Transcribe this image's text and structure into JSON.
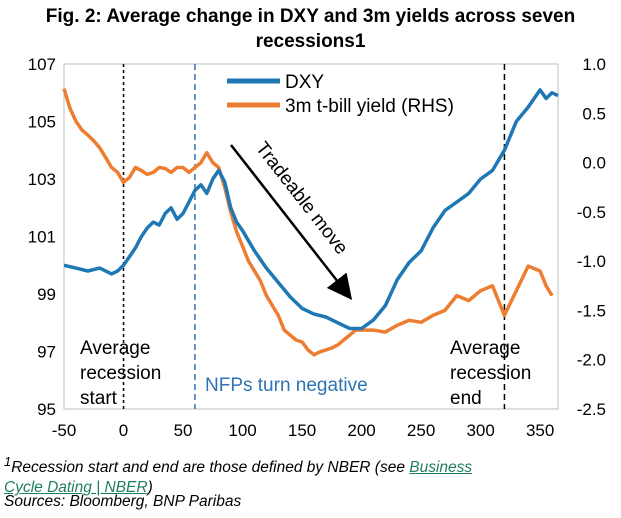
{
  "title": {
    "line1": "Fig. 2: Average change in DXY and 3m yields across seven",
    "line2": "recessions1"
  },
  "chart_data": {
    "type": "line",
    "title": "Fig. 2: Average change in DXY and 3m yields across seven recessions1",
    "xlim": [
      -50,
      365
    ],
    "x_ticks": [
      "-50",
      "0",
      "50",
      "100",
      "150",
      "200",
      "250",
      "300",
      "350"
    ],
    "y_left_lim": [
      95,
      107
    ],
    "y_left_ticks": [
      "95",
      "97",
      "99",
      "101",
      "103",
      "105",
      "107"
    ],
    "y_right_lim": [
      -2.5,
      1.0
    ],
    "y_right_ticks": [
      "-2.5",
      "-2.0",
      "-1.5",
      "-1.0",
      "-0.5",
      "0.0",
      "0.5",
      "1.0"
    ],
    "legend": [
      {
        "label": "DXY",
        "color": "#1f77b4"
      },
      {
        "label": "3m t-bill yield (RHS)",
        "color": "#ed7d31"
      }
    ],
    "legend_position": "top-center",
    "series": [
      {
        "name": "DXY",
        "axis": "left",
        "color": "#1f77b4",
        "x": [
          -50,
          -40,
          -30,
          -20,
          -10,
          -5,
          0,
          5,
          10,
          15,
          20,
          25,
          30,
          35,
          40,
          45,
          50,
          55,
          60,
          65,
          70,
          75,
          80,
          85,
          90,
          95,
          100,
          110,
          120,
          130,
          140,
          150,
          160,
          170,
          180,
          190,
          200,
          210,
          220,
          230,
          240,
          250,
          260,
          270,
          280,
          290,
          300,
          310,
          320,
          330,
          340,
          350,
          355,
          360,
          365
        ],
        "y": [
          100.0,
          99.9,
          99.8,
          99.9,
          99.7,
          99.8,
          100.0,
          100.3,
          100.6,
          101.0,
          101.3,
          101.5,
          101.4,
          101.8,
          102.0,
          101.6,
          101.8,
          102.2,
          102.6,
          102.8,
          102.5,
          103.0,
          103.3,
          102.9,
          102.0,
          101.5,
          101.2,
          100.5,
          99.9,
          99.4,
          98.9,
          98.5,
          98.3,
          98.2,
          98.0,
          97.8,
          97.8,
          98.1,
          98.6,
          99.5,
          100.1,
          100.5,
          101.3,
          101.9,
          102.2,
          102.5,
          103.0,
          103.3,
          104.0,
          105.0,
          105.5,
          106.1,
          105.8,
          106.0,
          105.9
        ]
      },
      {
        "name": "3m t-bill yield (RHS)",
        "axis": "right",
        "color": "#ed7d31",
        "x": [
          -50,
          -45,
          -40,
          -35,
          -30,
          -25,
          -20,
          -15,
          -10,
          -5,
          0,
          5,
          10,
          15,
          20,
          25,
          30,
          35,
          40,
          45,
          50,
          55,
          60,
          65,
          70,
          75,
          80,
          85,
          90,
          95,
          100,
          105,
          110,
          115,
          120,
          125,
          130,
          135,
          140,
          145,
          150,
          155,
          160,
          165,
          170,
          175,
          180,
          185,
          190,
          195,
          200,
          210,
          220,
          230,
          240,
          250,
          260,
          270,
          280,
          290,
          300,
          310,
          320,
          330,
          340,
          350,
          355,
          360
        ],
        "y": [
          0.75,
          0.55,
          0.42,
          0.33,
          0.28,
          0.22,
          0.15,
          0.05,
          -0.05,
          -0.1,
          -0.2,
          -0.15,
          -0.05,
          -0.08,
          -0.12,
          -0.1,
          -0.05,
          -0.06,
          -0.1,
          -0.05,
          -0.05,
          -0.1,
          -0.05,
          0.0,
          0.1,
          0.0,
          -0.05,
          -0.25,
          -0.5,
          -0.7,
          -0.85,
          -1.0,
          -1.1,
          -1.2,
          -1.35,
          -1.45,
          -1.55,
          -1.7,
          -1.75,
          -1.8,
          -1.82,
          -1.9,
          -1.95,
          -1.92,
          -1.9,
          -1.88,
          -1.85,
          -1.8,
          -1.75,
          -1.7,
          -1.7,
          -1.7,
          -1.72,
          -1.65,
          -1.6,
          -1.62,
          -1.55,
          -1.5,
          -1.35,
          -1.4,
          -1.3,
          -1.25,
          -1.55,
          -1.3,
          -1.05,
          -1.1,
          -1.25,
          -1.35
        ]
      }
    ],
    "vlines": [
      {
        "x": 0,
        "style": "dotted",
        "color": "#000000"
      },
      {
        "x": 60,
        "style": "dashed",
        "color": "#2e74b5"
      },
      {
        "x": 320,
        "style": "dashed",
        "color": "#000000"
      }
    ],
    "annotations": {
      "tradeable": "Tradeable move",
      "start": [
        "Average",
        "recession",
        "start"
      ],
      "nfps": "NFPs turn negative",
      "end": [
        "Average",
        "recession",
        "end"
      ]
    }
  },
  "footnote": {
    "marker": "1",
    "text_before": "Recession start and end are those defined by NBER (see ",
    "link1": "Business",
    "link2": "Cycle Dating | NBER",
    "text_after": ")"
  },
  "sources": "Sources: Bloomberg, BNP Paribas"
}
